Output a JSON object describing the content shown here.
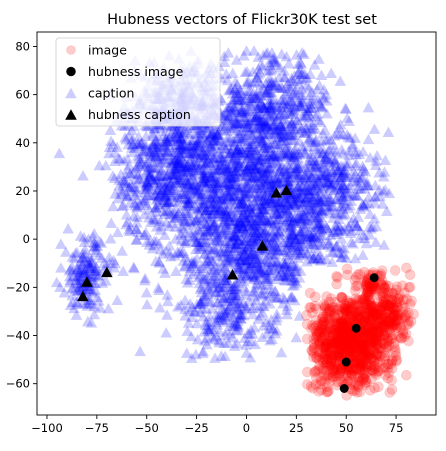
{
  "chart_data": {
    "type": "scatter",
    "title": "Hubness vectors of Flickr30K test set",
    "xlabel": "",
    "ylabel": "",
    "xlim": [
      -105,
      95
    ],
    "ylim": [
      -73,
      86
    ],
    "x_ticks": [
      -100,
      -75,
      -50,
      -25,
      0,
      25,
      50,
      75
    ],
    "y_ticks": [
      -60,
      -40,
      -20,
      0,
      20,
      40,
      60,
      80
    ],
    "grid": false,
    "legend_position": "top-left",
    "legend": [
      "image",
      "hubness image",
      "caption",
      "hubness caption"
    ],
    "series": [
      {
        "name": "image",
        "marker": "circle",
        "color": "#ff0000",
        "alpha": 0.2,
        "cloud": {
          "note": "dense cluster",
          "x_range": [
            30,
            84
          ],
          "y_range": [
            -65,
            -10
          ]
        },
        "points": []
      },
      {
        "name": "hubness image",
        "marker": "circle",
        "color": "#000000",
        "points": [
          [
            64,
            -16
          ],
          [
            55,
            -37
          ],
          [
            50,
            -51
          ],
          [
            49,
            -62
          ]
        ]
      },
      {
        "name": "caption",
        "marker": "triangle",
        "color": "#0000ff",
        "alpha": 0.2,
        "cloud": {
          "note": "dense cluster",
          "x_range": [
            -97,
            70
          ],
          "y_range": [
            -50,
            78
          ]
        },
        "points": []
      },
      {
        "name": "hubness caption",
        "marker": "triangle",
        "color": "#000000",
        "points": [
          [
            -80,
            -18
          ],
          [
            -82,
            -24
          ],
          [
            -70,
            -14
          ],
          [
            15,
            19
          ],
          [
            20,
            20
          ],
          [
            8,
            -3
          ],
          [
            -7,
            -15
          ]
        ]
      }
    ]
  }
}
